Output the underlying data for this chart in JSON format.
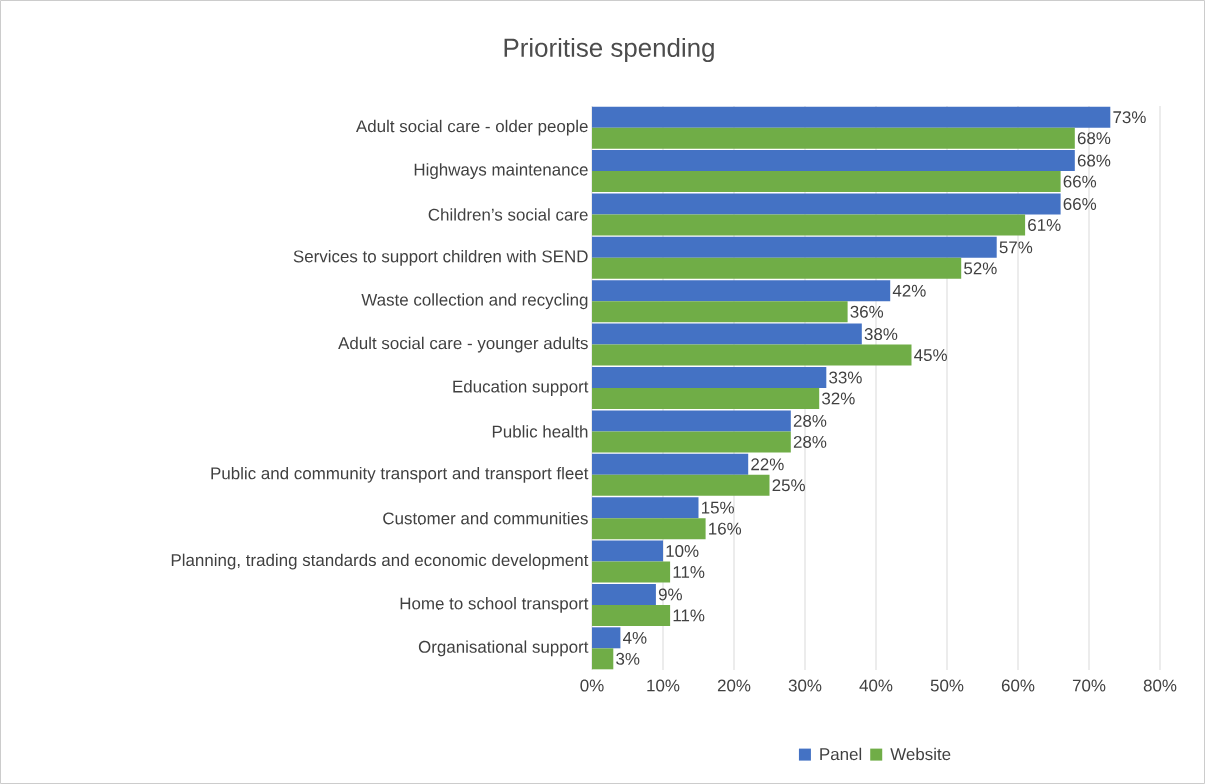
{
  "chart_data": {
    "type": "bar",
    "orientation": "horizontal",
    "title": "Prioritise spending",
    "categories": [
      "Adult social care - older people",
      "Highways maintenance",
      "Children’s social care",
      "Services to support children with SEND",
      "Waste collection and recycling",
      "Adult social care - younger adults",
      "Education support",
      "Public health",
      "Public and community transport and transport fleet",
      "Customer and communities",
      "Planning, trading standards and economic development",
      "Home to school transport",
      "Organisational support"
    ],
    "series": [
      {
        "name": "Panel",
        "color": "#4472c4",
        "values": [
          73,
          68,
          66,
          57,
          42,
          38,
          33,
          28,
          22,
          15,
          10,
          9,
          4
        ],
        "value_labels": [
          "73%",
          "68%",
          "66%",
          "57%",
          "42%",
          "38%",
          "33%",
          "28%",
          "22%",
          "15%",
          "10%",
          "9%",
          "4%"
        ]
      },
      {
        "name": "Website",
        "color": "#70ad47",
        "values": [
          68,
          66,
          61,
          52,
          36,
          45,
          32,
          28,
          25,
          16,
          11,
          11,
          3
        ],
        "value_labels": [
          "68%",
          "66%",
          "61%",
          "52%",
          "36%",
          "45%",
          "32%",
          "28%",
          "25%",
          "16%",
          "11%",
          "11%",
          "3%"
        ]
      }
    ],
    "xlim": [
      0,
      80
    ],
    "xticks": [
      {
        "value": 0,
        "label": "0%"
      },
      {
        "value": 10,
        "label": "10%"
      },
      {
        "value": 20,
        "label": "20%"
      },
      {
        "value": 30,
        "label": "30%"
      },
      {
        "value": 40,
        "label": "40%"
      },
      {
        "value": 50,
        "label": "50%"
      },
      {
        "value": 60,
        "label": "60%"
      },
      {
        "value": 70,
        "label": "70%"
      },
      {
        "value": 80,
        "label": "80%"
      }
    ],
    "grid": "x",
    "legend": "bottom"
  }
}
